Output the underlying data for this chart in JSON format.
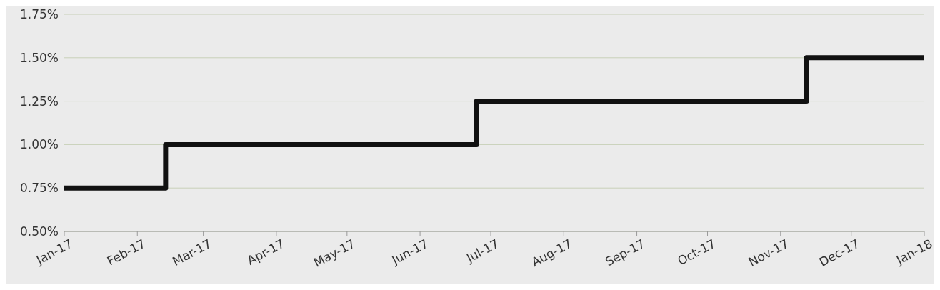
{
  "chart_data": {
    "type": "step",
    "x": [
      "2017-01-01",
      "2017-02-13",
      "2017-06-25",
      "2017-11-12",
      "2018-01-01"
    ],
    "series": [
      {
        "color": "#111111",
        "values": [
          0.75,
          1.0,
          1.25,
          1.5,
          1.5
        ]
      }
    ],
    "xlim": [
      "2017-01-01",
      "2018-01-01"
    ],
    "xticks": [
      {
        "value": "2017-01-01",
        "label": "Jan-17"
      },
      {
        "value": "2017-02-01",
        "label": "Feb-17"
      },
      {
        "value": "2017-03-01",
        "label": "Mar-17"
      },
      {
        "value": "2017-04-01",
        "label": "Apr-17"
      },
      {
        "value": "2017-05-01",
        "label": "May-17"
      },
      {
        "value": "2017-06-01",
        "label": "Jun-17"
      },
      {
        "value": "2017-07-01",
        "label": "Jul-17"
      },
      {
        "value": "2017-08-01",
        "label": "Aug-17"
      },
      {
        "value": "2017-09-01",
        "label": "Sep-17"
      },
      {
        "value": "2017-10-01",
        "label": "Oct-17"
      },
      {
        "value": "2017-11-01",
        "label": "Nov-17"
      },
      {
        "value": "2017-12-01",
        "label": "Dec-17"
      },
      {
        "value": "2018-01-01",
        "label": "Jan-18"
      }
    ],
    "ylim": [
      0.5,
      1.75
    ],
    "yticks": [
      {
        "value": 0.5,
        "label": "0.50%"
      },
      {
        "value": 0.75,
        "label": "0.75%"
      },
      {
        "value": 1.0,
        "label": "1.00%"
      },
      {
        "value": 1.25,
        "label": "1.25%"
      },
      {
        "value": 1.5,
        "label": "1.50%"
      },
      {
        "value": 1.75,
        "label": "1.75%"
      }
    ],
    "grid": "y",
    "marker": "none",
    "line_style": "solid",
    "legend": false
  }
}
